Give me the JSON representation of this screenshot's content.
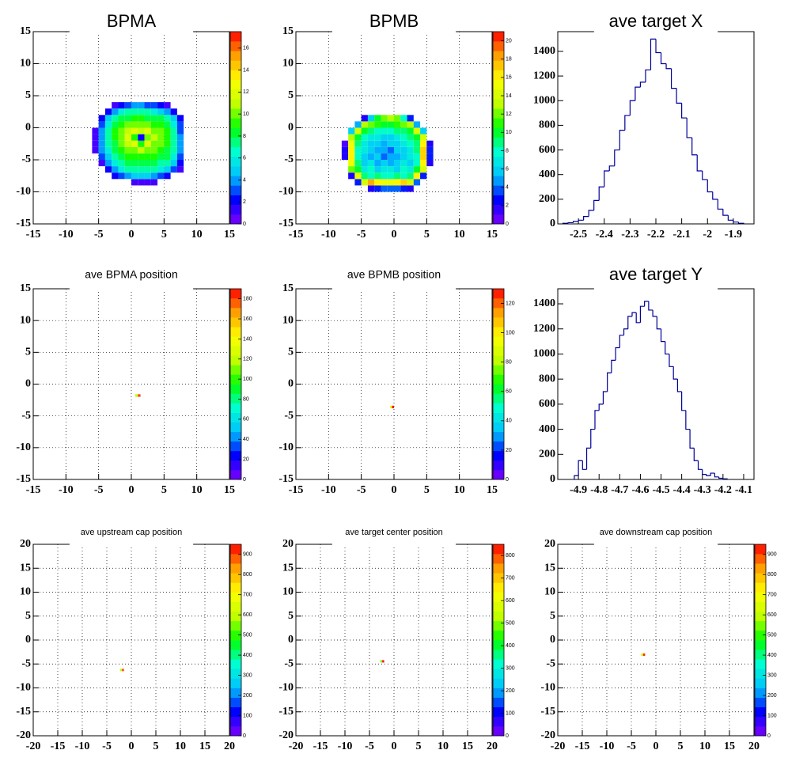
{
  "chart_data": [
    {
      "type": "heatmap",
      "title": "BPMA",
      "xlim": [
        -15,
        15
      ],
      "ylim": [
        -15,
        15
      ],
      "xticks": [
        -15,
        -10,
        -5,
        0,
        5,
        10,
        15
      ],
      "yticks": [
        -15,
        -10,
        -5,
        0,
        5,
        10,
        15
      ],
      "grid": true,
      "xbins": [
        -6,
        -5,
        -4,
        -3,
        -2,
        -1,
        0,
        1,
        2,
        3,
        4,
        5,
        6,
        7,
        8,
        9
      ],
      "ybins": [
        -9,
        -8,
        -7,
        -6,
        -5,
        -4,
        -3,
        -2,
        -1,
        0,
        1,
        2,
        3,
        4
      ],
      "z": [
        [
          0,
          0,
          0,
          0,
          0,
          0,
          1,
          1,
          1,
          1,
          0,
          0,
          0,
          0,
          0
        ],
        [
          0,
          0,
          0,
          2,
          3,
          4,
          5,
          5,
          5,
          4,
          3,
          2,
          0,
          0,
          0
        ],
        [
          0,
          0,
          2,
          4,
          6,
          7,
          7,
          7,
          7,
          7,
          6,
          5,
          3,
          1,
          0
        ],
        [
          0,
          1,
          4,
          6,
          7,
          8,
          8,
          8,
          8,
          8,
          7,
          7,
          5,
          2,
          0
        ],
        [
          0,
          3,
          5,
          7,
          8,
          9,
          9,
          9,
          9,
          9,
          8,
          8,
          6,
          3,
          0
        ],
        [
          1,
          4,
          6,
          8,
          9,
          10,
          10,
          11,
          10,
          10,
          9,
          8,
          7,
          4,
          0
        ],
        [
          1,
          4,
          7,
          8,
          10,
          11,
          12,
          9,
          12,
          10,
          10,
          9,
          7,
          4,
          0
        ],
        [
          1,
          4,
          7,
          9,
          10,
          12,
          9,
          2,
          10,
          11,
          10,
          9,
          7,
          4,
          0
        ],
        [
          1,
          4,
          7,
          9,
          10,
          11,
          12,
          11,
          12,
          10,
          10,
          9,
          7,
          3,
          0
        ],
        [
          0,
          3,
          6,
          8,
          9,
          10,
          10,
          10,
          10,
          9,
          9,
          8,
          6,
          3,
          0
        ],
        [
          0,
          2,
          5,
          7,
          8,
          8,
          9,
          9,
          8,
          8,
          8,
          7,
          5,
          2,
          0
        ],
        [
          0,
          0,
          2,
          4,
          6,
          7,
          7,
          7,
          7,
          6,
          5,
          4,
          2,
          0,
          0
        ],
        [
          0,
          0,
          0,
          1,
          2,
          3,
          4,
          4,
          3,
          3,
          2,
          1,
          0,
          0,
          0
        ]
      ],
      "zlim": [
        0,
        17.5
      ],
      "zticks": [
        0,
        2,
        4,
        6,
        8,
        10,
        12,
        14,
        16
      ],
      "palette": [
        "#8000ff",
        "#0000ff",
        "#00c0ff",
        "#00ffd0",
        "#00ff00",
        "#c0ff00",
        "#ffff00",
        "#ffa000",
        "#ff0000"
      ]
    },
    {
      "type": "heatmap",
      "title": "BPMB",
      "xlim": [
        -15,
        15
      ],
      "ylim": [
        -15,
        15
      ],
      "xticks": [
        -15,
        -10,
        -5,
        0,
        5,
        10,
        15
      ],
      "yticks": [
        -15,
        -10,
        -5,
        0,
        5,
        10,
        15
      ],
      "grid": true,
      "xbins": [
        -8,
        -7,
        -6,
        -5,
        -4,
        -3,
        -2,
        -1,
        0,
        1,
        2,
        3,
        4,
        5,
        6,
        7
      ],
      "ybins": [
        -10,
        -9,
        -8,
        -7,
        -6,
        -5,
        -4,
        -3,
        -2,
        -1,
        0,
        1,
        2
      ],
      "z": [
        [
          0,
          0,
          0,
          0,
          2,
          3,
          4,
          4,
          4,
          3,
          2,
          0,
          0,
          0,
          0
        ],
        [
          0,
          0,
          3,
          14,
          18,
          16,
          15,
          15,
          16,
          17,
          14,
          4,
          0,
          0,
          0
        ],
        [
          0,
          2,
          15,
          9,
          8,
          9,
          8,
          8,
          9,
          8,
          9,
          16,
          3,
          0,
          0
        ],
        [
          0,
          12,
          10,
          7,
          8,
          6,
          7,
          7,
          6,
          8,
          7,
          10,
          14,
          0,
          0
        ],
        [
          0,
          15,
          9,
          6,
          7,
          5,
          6,
          5,
          6,
          7,
          6,
          8,
          16,
          2,
          0
        ],
        [
          2,
          16,
          8,
          6,
          5,
          6,
          4,
          5,
          5,
          6,
          7,
          8,
          17,
          3,
          0
        ],
        [
          2,
          16,
          8,
          7,
          6,
          5,
          5,
          4,
          6,
          6,
          7,
          9,
          17,
          3,
          0
        ],
        [
          1,
          15,
          9,
          7,
          6,
          6,
          5,
          6,
          6,
          7,
          8,
          9,
          16,
          2,
          0
        ],
        [
          0,
          13,
          10,
          8,
          7,
          7,
          6,
          6,
          7,
          8,
          9,
          10,
          14,
          0,
          0
        ],
        [
          0,
          6,
          14,
          10,
          9,
          8,
          8,
          8,
          9,
          9,
          10,
          14,
          6,
          0,
          0
        ],
        [
          0,
          0,
          5,
          13,
          12,
          11,
          10,
          10,
          11,
          12,
          13,
          5,
          0,
          0,
          0
        ],
        [
          0,
          0,
          0,
          2,
          6,
          10,
          12,
          13,
          12,
          8,
          3,
          0,
          0,
          0,
          0
        ]
      ],
      "zlim": [
        0,
        21
      ],
      "zticks": [
        0,
        2,
        4,
        6,
        8,
        10,
        12,
        14,
        16,
        18,
        20
      ],
      "palette": [
        "#8000ff",
        "#0000ff",
        "#00c0ff",
        "#00ffd0",
        "#00ff00",
        "#c0ff00",
        "#ffff00",
        "#ffa000",
        "#ff0000"
      ]
    },
    {
      "type": "histogram",
      "title": "ave target X",
      "xlim": [
        -2.58,
        -1.82
      ],
      "ylim": [
        0,
        1560
      ],
      "xticks": [
        -2.5,
        -2.4,
        -2.3,
        -2.2,
        -2.1,
        -2,
        -1.9
      ],
      "yticks": [
        0,
        200,
        400,
        600,
        800,
        1000,
        1200,
        1400
      ],
      "grid": false,
      "color": "#000099",
      "bins": [
        -2.56,
        -2.54,
        -2.52,
        -2.5,
        -2.48,
        -2.46,
        -2.44,
        -2.42,
        -2.4,
        -2.38,
        -2.36,
        -2.34,
        -2.32,
        -2.3,
        -2.28,
        -2.26,
        -2.24,
        -2.22,
        -2.2,
        -2.18,
        -2.16,
        -2.14,
        -2.12,
        -2.1,
        -2.08,
        -2.06,
        -2.04,
        -2.02,
        -2,
        -1.98,
        -1.96,
        -1.94,
        -1.92,
        -1.9,
        -1.88,
        -1.86
      ],
      "counts": [
        5,
        10,
        20,
        30,
        60,
        110,
        190,
        300,
        430,
        470,
        600,
        760,
        880,
        1000,
        1110,
        1150,
        1250,
        1500,
        1390,
        1300,
        1260,
        1100,
        980,
        860,
        700,
        560,
        430,
        360,
        260,
        200,
        120,
        70,
        30,
        15,
        5
      ]
    },
    {
      "type": "heatmap",
      "title": "ave BPMA position",
      "xlim": [
        -15,
        15
      ],
      "ylim": [
        -15,
        15
      ],
      "xticks": [
        -15,
        -10,
        -5,
        0,
        5,
        10,
        15
      ],
      "yticks": [
        -15,
        -10,
        -5,
        0,
        5,
        10,
        15
      ],
      "grid": true,
      "xbins": [
        0.6,
        1.0,
        1.4
      ],
      "ybins": [
        -2.0,
        -1.6
      ],
      "z": [
        [
          120,
          180
        ]
      ],
      "zlim": [
        0,
        190
      ],
      "zticks": [
        0,
        20,
        40,
        60,
        80,
        100,
        120,
        140,
        160,
        180
      ],
      "palette": [
        "#8000ff",
        "#0000ff",
        "#00c0ff",
        "#00ffd0",
        "#00ff00",
        "#c0ff00",
        "#ffff00",
        "#ffa000",
        "#ff0000"
      ]
    },
    {
      "type": "heatmap",
      "title": "ave BPMB position",
      "xlim": [
        -15,
        15
      ],
      "ylim": [
        -15,
        15
      ],
      "xticks": [
        -15,
        -10,
        -5,
        0,
        5,
        10,
        15
      ],
      "yticks": [
        -15,
        -10,
        -5,
        0,
        5,
        10,
        15
      ],
      "grid": true,
      "xbins": [
        -0.6,
        -0.3,
        0.0
      ],
      "ybins": [
        -3.8,
        -3.4
      ],
      "z": [
        [
          90,
          130
        ]
      ],
      "zlim": [
        0,
        130
      ],
      "zticks": [
        0,
        20,
        40,
        60,
        80,
        100,
        120
      ],
      "palette": [
        "#8000ff",
        "#0000ff",
        "#00c0ff",
        "#00ffd0",
        "#00ff00",
        "#c0ff00",
        "#ffff00",
        "#ffa000",
        "#ff0000"
      ]
    },
    {
      "type": "histogram",
      "title": "ave target Y",
      "xlim": [
        -5.0,
        -4.05
      ],
      "ylim": [
        0,
        1520
      ],
      "xticks": [
        -4.9,
        -4.8,
        -4.7,
        -4.6,
        -4.5,
        -4.4,
        -4.3,
        -4.2,
        -4.1
      ],
      "yticks": [
        0,
        200,
        400,
        600,
        800,
        1000,
        1200,
        1400
      ],
      "grid": false,
      "color": "#000099",
      "bins": [
        -4.92,
        -4.9,
        -4.88,
        -4.86,
        -4.84,
        -4.82,
        -4.8,
        -4.78,
        -4.76,
        -4.74,
        -4.72,
        -4.7,
        -4.68,
        -4.66,
        -4.64,
        -4.62,
        -4.6,
        -4.58,
        -4.56,
        -4.54,
        -4.52,
        -4.5,
        -4.48,
        -4.46,
        -4.44,
        -4.42,
        -4.4,
        -4.38,
        -4.36,
        -4.34,
        -4.32,
        -4.3,
        -4.28,
        -4.26,
        -4.24,
        -4.22,
        -4.2,
        -4.18
      ],
      "counts": [
        30,
        150,
        80,
        250,
        400,
        550,
        600,
        700,
        850,
        950,
        1050,
        1150,
        1200,
        1300,
        1330,
        1250,
        1380,
        1420,
        1350,
        1300,
        1200,
        1100,
        1000,
        900,
        800,
        700,
        550,
        400,
        250,
        150,
        80,
        40,
        30,
        50,
        20,
        10,
        5
      ]
    },
    {
      "type": "heatmap",
      "title": "ave upstream cap position",
      "xlim": [
        -20,
        20
      ],
      "ylim": [
        -20,
        20
      ],
      "xticks": [
        -20,
        -15,
        -10,
        -5,
        0,
        5,
        10,
        15,
        20
      ],
      "yticks": [
        -20,
        -15,
        -10,
        -5,
        0,
        5,
        10,
        15,
        20
      ],
      "grid": true,
      "xbins": [
        -2.3,
        -1.9,
        -1.5
      ],
      "ybins": [
        -6.5,
        -6.0
      ],
      "z": [
        [
          600,
          900
        ]
      ],
      "zlim": [
        0,
        950
      ],
      "zticks": [
        0,
        100,
        200,
        300,
        400,
        500,
        600,
        700,
        800,
        900
      ],
      "palette": [
        "#8000ff",
        "#0000ff",
        "#00c0ff",
        "#00ffd0",
        "#00ff00",
        "#c0ff00",
        "#ffff00",
        "#ffa000",
        "#ff0000"
      ]
    },
    {
      "type": "heatmap",
      "title": "ave target center  position",
      "xlim": [
        -20,
        20
      ],
      "ylim": [
        -20,
        20
      ],
      "xticks": [
        -20,
        -15,
        -10,
        -5,
        0,
        5,
        10,
        15,
        20
      ],
      "yticks": [
        -20,
        -15,
        -10,
        -5,
        0,
        5,
        10,
        15,
        20
      ],
      "grid": true,
      "xbins": [
        -2.8,
        -2.4,
        -2.0
      ],
      "ybins": [
        -4.7,
        -4.2
      ],
      "z": [
        [
          500,
          840
        ]
      ],
      "zlim": [
        0,
        850
      ],
      "zticks": [
        0,
        100,
        200,
        300,
        400,
        500,
        600,
        700,
        800
      ],
      "palette": [
        "#8000ff",
        "#0000ff",
        "#00c0ff",
        "#00ffd0",
        "#00ff00",
        "#c0ff00",
        "#ffff00",
        "#ffa000",
        "#ff0000"
      ]
    },
    {
      "type": "heatmap",
      "title": "ave downstream cap position",
      "xlim": [
        -20,
        20
      ],
      "ylim": [
        -20,
        20
      ],
      "xticks": [
        -20,
        -15,
        -10,
        -5,
        0,
        5,
        10,
        15,
        20
      ],
      "yticks": [
        -20,
        -15,
        -10,
        -5,
        0,
        5,
        10,
        15,
        20
      ],
      "grid": true,
      "xbins": [
        -3.0,
        -2.6,
        -2.2
      ],
      "ybins": [
        -3.3,
        -2.8
      ],
      "z": [
        [
          600,
          920
        ]
      ],
      "zlim": [
        0,
        950
      ],
      "zticks": [
        0,
        100,
        200,
        300,
        400,
        500,
        600,
        700,
        800,
        900
      ],
      "palette": [
        "#8000ff",
        "#0000ff",
        "#00c0ff",
        "#00ffd0",
        "#00ff00",
        "#c0ff00",
        "#ffff00",
        "#ffa000",
        "#ff0000"
      ]
    }
  ]
}
